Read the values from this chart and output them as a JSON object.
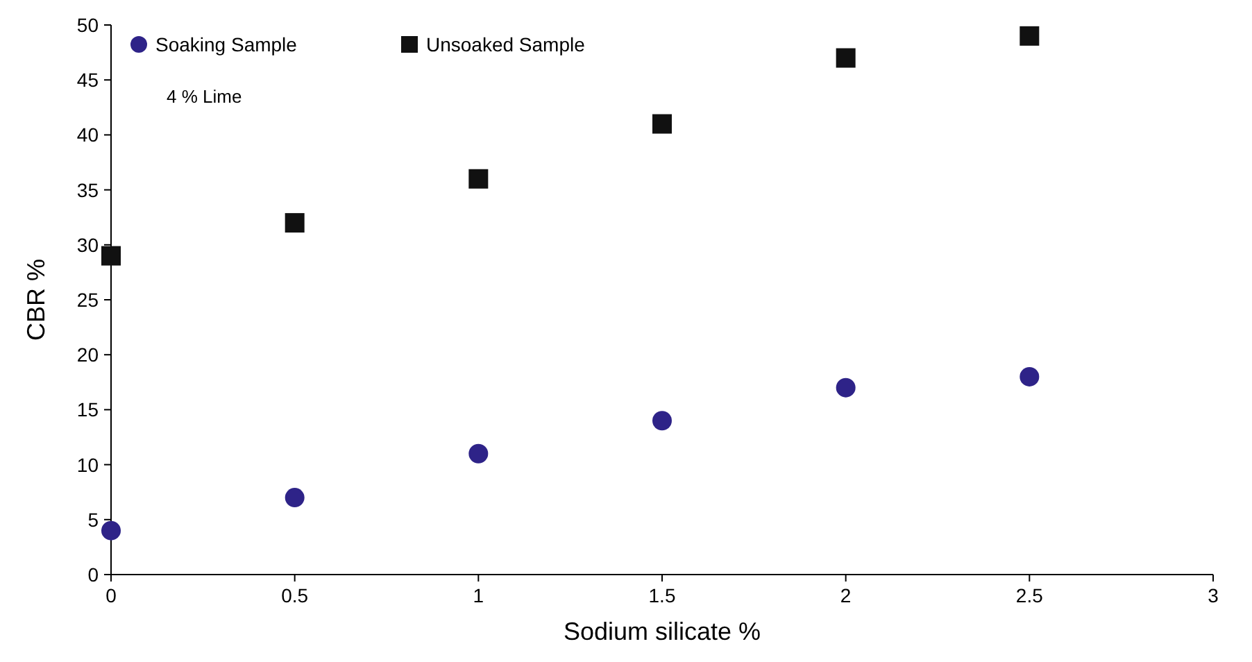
{
  "chart_data": {
    "type": "scatter",
    "xlabel": "Sodium silicate %",
    "ylabel": "CBR %",
    "x": [
      0,
      0.5,
      1,
      1.5,
      2,
      2.5
    ],
    "series": [
      {
        "name": "Soaking Sample",
        "color": "#2e2388",
        "marker": "circle",
        "values": [
          4,
          7,
          11,
          14,
          17,
          18
        ]
      },
      {
        "name": "Unsoaked Sample",
        "color": "#111111",
        "marker": "square",
        "values": [
          29,
          32,
          36,
          41,
          47,
          49
        ]
      }
    ],
    "xlim": [
      0,
      3
    ],
    "xticks": [
      0,
      0.5,
      1,
      1.5,
      2,
      2.5,
      3
    ],
    "ylim": [
      0,
      50
    ],
    "yticks": [
      0,
      5,
      10,
      15,
      20,
      25,
      30,
      35,
      40,
      45,
      50
    ],
    "grid": false,
    "legend": "top left",
    "annotations": [
      "4 % Lime"
    ]
  }
}
